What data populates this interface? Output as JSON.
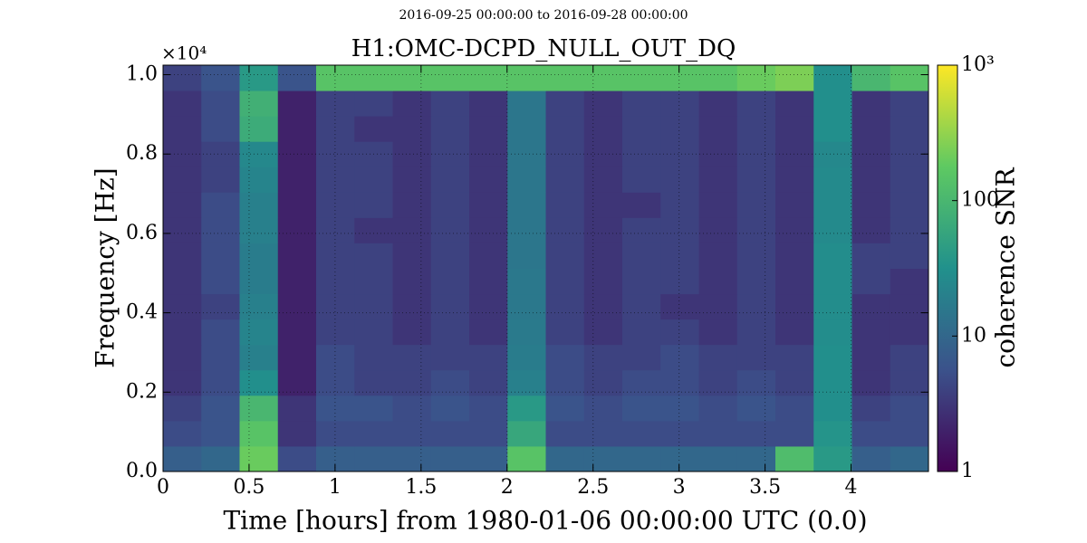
{
  "chart_data": {
    "type": "heatmap",
    "suptitle": "2016-09-25 00:00:00 to 2016-09-28 00:00:00",
    "title": "H1:OMC-DCPD_NULL_OUT_DQ",
    "x_label": "Time [hours] from 1980-01-06 00:00:00 UTC (0.0)",
    "y_label": "Frequency [Hz]",
    "y_offset_label": "×10⁴",
    "colorbar_label": "coherence SNR",
    "colormap": "viridis",
    "color_log": true,
    "grid": true,
    "xlim": [
      0,
      4.45
    ],
    "ylim": [
      0,
      10240
    ],
    "xticks": [
      0,
      0.5,
      1,
      1.5,
      2,
      2.5,
      3,
      3.5,
      4
    ],
    "yticks": [
      {
        "value": 0,
        "label": "0.0"
      },
      {
        "value": 2000,
        "label": "0.2"
      },
      {
        "value": 4000,
        "label": "0.4"
      },
      {
        "value": 6000,
        "label": "0.6"
      },
      {
        "value": 8000,
        "label": "0.8"
      },
      {
        "value": 10000,
        "label": "1.0"
      }
    ],
    "clim": [
      1,
      1000
    ],
    "cticks": [
      1,
      10,
      100,
      {
        "value": 1000,
        "label": "10³"
      }
    ],
    "x": [
      0,
      0.2225,
      0.445,
      0.6675,
      0.89,
      1.1125,
      1.335,
      1.5575,
      1.78,
      2.0025,
      2.225,
      2.4475,
      2.67,
      2.8925,
      3.115,
      3.3375,
      3.56,
      3.7825,
      4.005,
      4.2275
    ],
    "y": [
      0,
      640,
      1280,
      1920,
      2560,
      3200,
      3840,
      4480,
      5120,
      5760,
      6400,
      7040,
      7680,
      8320,
      8960,
      9600
    ],
    "z": [
      [
        8,
        10,
        200,
        5,
        8,
        8,
        8,
        8,
        8,
        150,
        10,
        10,
        10,
        10,
        10,
        10,
        120,
        40,
        8,
        10
      ],
      [
        5,
        6,
        150,
        3,
        5,
        5,
        5,
        5,
        5,
        60,
        5,
        5,
        5,
        5,
        5,
        5,
        5,
        35,
        5,
        5
      ],
      [
        4,
        6,
        100,
        3,
        6,
        6,
        5,
        6,
        5,
        40,
        6,
        5,
        6,
        6,
        5,
        6,
        5,
        30,
        4,
        5
      ],
      [
        3,
        5,
        30,
        2,
        5,
        4,
        4,
        5,
        4,
        20,
        5,
        4,
        5,
        5,
        4,
        5,
        4,
        30,
        3,
        4
      ],
      [
        3,
        5,
        20,
        2,
        5,
        4,
        4,
        4,
        4,
        18,
        5,
        4,
        4,
        5,
        4,
        4,
        4,
        30,
        3,
        4
      ],
      [
        3,
        5,
        22,
        2,
        4,
        4,
        3,
        4,
        3,
        17,
        4,
        3,
        4,
        4,
        3,
        4,
        3,
        28,
        3,
        3
      ],
      [
        3,
        4,
        20,
        2,
        4,
        4,
        3,
        4,
        3,
        16,
        4,
        3,
        4,
        3,
        3,
        4,
        3,
        28,
        3,
        3
      ],
      [
        3,
        5,
        18,
        2,
        4,
        4,
        3,
        4,
        3,
        16,
        4,
        3,
        4,
        4,
        3,
        4,
        3,
        28,
        4,
        3
      ],
      [
        3,
        5,
        18,
        2,
        4,
        4,
        3,
        4,
        3,
        15,
        4,
        3,
        4,
        4,
        3,
        4,
        3,
        28,
        4,
        4
      ],
      [
        3,
        5,
        20,
        2,
        4,
        3,
        3,
        4,
        3,
        15,
        4,
        3,
        4,
        4,
        3,
        4,
        3,
        26,
        3,
        4
      ],
      [
        3,
        5,
        20,
        2,
        4,
        4,
        3,
        4,
        3,
        15,
        4,
        3,
        3,
        4,
        3,
        4,
        3,
        26,
        3,
        4
      ],
      [
        3,
        4,
        22,
        2,
        4,
        4,
        3,
        4,
        3,
        15,
        4,
        3,
        4,
        4,
        3,
        4,
        3,
        26,
        3,
        4
      ],
      [
        3,
        4,
        25,
        2,
        4,
        4,
        3,
        4,
        3,
        15,
        4,
        3,
        4,
        4,
        3,
        4,
        3,
        25,
        3,
        4
      ],
      [
        3,
        5,
        70,
        2,
        4,
        3,
        3,
        4,
        3,
        15,
        4,
        3,
        4,
        4,
        3,
        4,
        3,
        30,
        3,
        4
      ],
      [
        3,
        5,
        80,
        2,
        4,
        4,
        3,
        4,
        3,
        15,
        4,
        3,
        4,
        4,
        3,
        4,
        3,
        30,
        3,
        4
      ],
      [
        4,
        6,
        40,
        6,
        150,
        150,
        150,
        150,
        150,
        150,
        150,
        150,
        150,
        150,
        150,
        200,
        250,
        30,
        100,
        150
      ]
    ]
  }
}
